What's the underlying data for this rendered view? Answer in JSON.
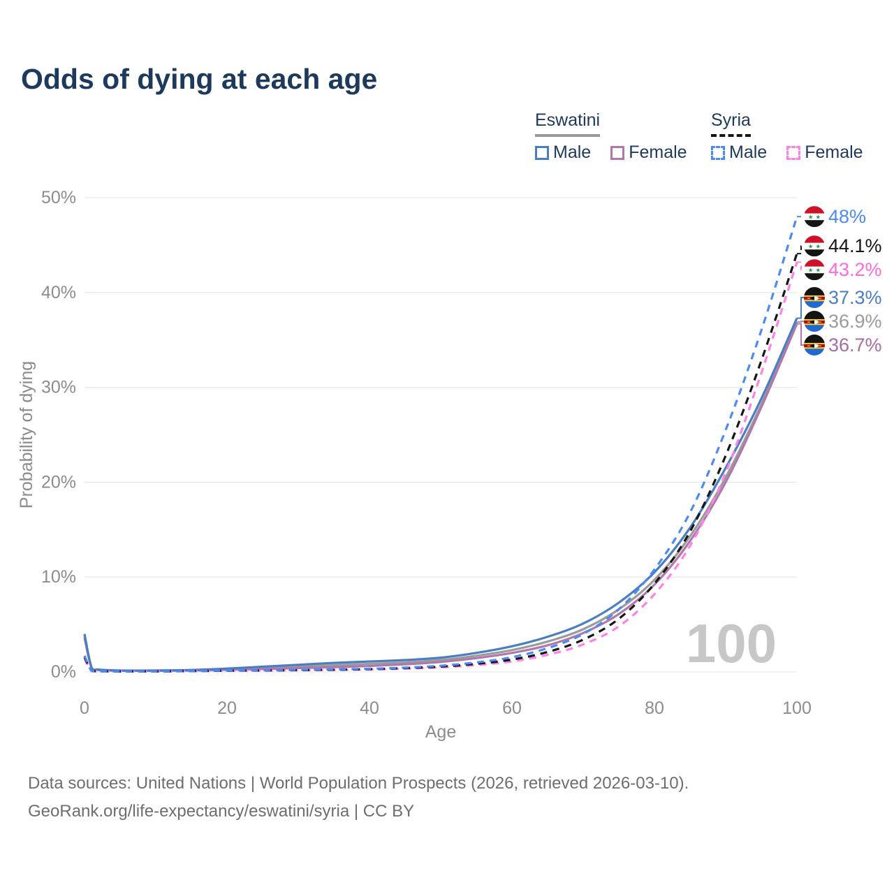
{
  "title": "Odds of dying at each age",
  "legend": {
    "groups": [
      {
        "name": "Eswatini",
        "line_style": "solid",
        "underline_color": "#9a9a9a",
        "items": [
          {
            "label": "Male",
            "color": "#4a7ec0",
            "dashed": false
          },
          {
            "label": "Female",
            "color": "#b077ad",
            "dashed": false
          }
        ]
      },
      {
        "name": "Syria",
        "line_style": "dashed",
        "underline_color": "#161616",
        "items": [
          {
            "label": "Male",
            "color": "#4b8bf3",
            "dashed": true
          },
          {
            "label": "Female",
            "color": "#ff80e8",
            "dashed": true
          }
        ]
      }
    ]
  },
  "chart_data": {
    "type": "line",
    "title": "Odds of dying at each age",
    "xlabel": "Age",
    "ylabel": "Probability of dying",
    "xlim": [
      0,
      100
    ],
    "ylim": [
      0,
      50
    ],
    "x_ticks": [
      0,
      20,
      40,
      60,
      80,
      100
    ],
    "y_ticks": [
      0,
      10,
      20,
      30,
      40,
      50
    ],
    "y_tick_suffix": "%",
    "grid": "horizontal",
    "legend_position": "top-right",
    "watermark": "100",
    "ages": [
      0,
      1,
      2,
      5,
      10,
      15,
      20,
      25,
      30,
      35,
      40,
      45,
      50,
      55,
      60,
      65,
      70,
      75,
      80,
      85,
      90,
      95,
      100
    ],
    "series": [
      {
        "name": "Eswatini Both sexes",
        "country": "eswatini",
        "sex": "both",
        "color": "#9b9b9b",
        "dashed": false,
        "values": [
          3.8,
          0.42,
          0.22,
          0.13,
          0.13,
          0.18,
          0.28,
          0.42,
          0.55,
          0.7,
          0.85,
          1.0,
          1.25,
          1.7,
          2.3,
          3.2,
          4.5,
          6.6,
          9.7,
          14.3,
          20.5,
          28.2,
          36.9
        ],
        "end_label": {
          "text": "36.9%",
          "value": 36.9,
          "color": "#9b9b9b",
          "flag": "eswatini"
        }
      },
      {
        "name": "Eswatini Female",
        "country": "eswatini",
        "sex": "female",
        "color": "#b077ad",
        "dashed": false,
        "values": [
          3.6,
          0.4,
          0.2,
          0.12,
          0.12,
          0.15,
          0.22,
          0.3,
          0.4,
          0.5,
          0.62,
          0.8,
          1.05,
          1.45,
          2.0,
          2.8,
          4.1,
          6.1,
          9.2,
          13.8,
          20.0,
          27.9,
          36.7
        ],
        "end_label": {
          "text": "36.7%",
          "value": 36.7,
          "color": "#a86ca6",
          "flag": "eswatini"
        }
      },
      {
        "name": "Eswatini Male",
        "country": "eswatini",
        "sex": "male",
        "color": "#4a7ec0",
        "dashed": false,
        "values": [
          4.0,
          0.45,
          0.25,
          0.15,
          0.15,
          0.2,
          0.35,
          0.55,
          0.75,
          0.95,
          1.1,
          1.25,
          1.5,
          2.0,
          2.7,
          3.7,
          5.1,
          7.3,
          10.5,
          15.2,
          21.5,
          28.8,
          37.3
        ],
        "end_label": {
          "text": "37.3%",
          "value": 37.3,
          "color": "#4a7ec0",
          "flag": "eswatini"
        }
      },
      {
        "name": "Syria Female",
        "country": "syria",
        "sex": "female",
        "color": "#ff80e8",
        "dashed": true,
        "values": [
          1.4,
          0.1,
          0.06,
          0.05,
          0.05,
          0.08,
          0.11,
          0.13,
          0.16,
          0.2,
          0.25,
          0.34,
          0.48,
          0.72,
          1.1,
          1.8,
          2.9,
          4.8,
          8.2,
          13.3,
          21.0,
          31.5,
          43.2
        ],
        "end_label": {
          "text": "43.2%",
          "value": 43.2,
          "color": "#ff6ade",
          "flag": "syria"
        }
      },
      {
        "name": "Syria Both sexes",
        "country": "syria",
        "sex": "both",
        "color": "#161616",
        "dashed": true,
        "values": [
          1.55,
          0.11,
          0.07,
          0.05,
          0.05,
          0.09,
          0.13,
          0.16,
          0.19,
          0.23,
          0.29,
          0.4,
          0.56,
          0.85,
          1.3,
          2.1,
          3.4,
          5.6,
          9.3,
          14.8,
          22.8,
          32.8,
          44.1
        ],
        "end_label": {
          "text": "44.1%",
          "value": 44.1,
          "color": "#161616",
          "flag": "syria"
        }
      },
      {
        "name": "Syria Male",
        "country": "syria",
        "sex": "male",
        "color": "#4b8bf3",
        "dashed": true,
        "values": [
          1.7,
          0.12,
          0.08,
          0.06,
          0.06,
          0.1,
          0.15,
          0.18,
          0.22,
          0.27,
          0.33,
          0.45,
          0.65,
          1.0,
          1.55,
          2.5,
          4.0,
          6.6,
          10.8,
          16.8,
          25.5,
          36.0,
          48.0
        ],
        "end_label": {
          "text": "48%",
          "value": 48.0,
          "color": "#4b8bf3",
          "flag": "syria"
        }
      }
    ]
  },
  "source": {
    "line1": "Data sources: United Nations | World Population Prospects (2026, retrieved 2026-03-10).",
    "line2": "GeoRank.org/life-expectancy/eswatini/syria | CC BY"
  },
  "colors": {
    "title": "#1d3a5c",
    "axis_text": "#8c8c8c",
    "gridline": "#e8e8e8",
    "watermark": "#c7c7c7",
    "source_text": "#6e6e6e"
  }
}
